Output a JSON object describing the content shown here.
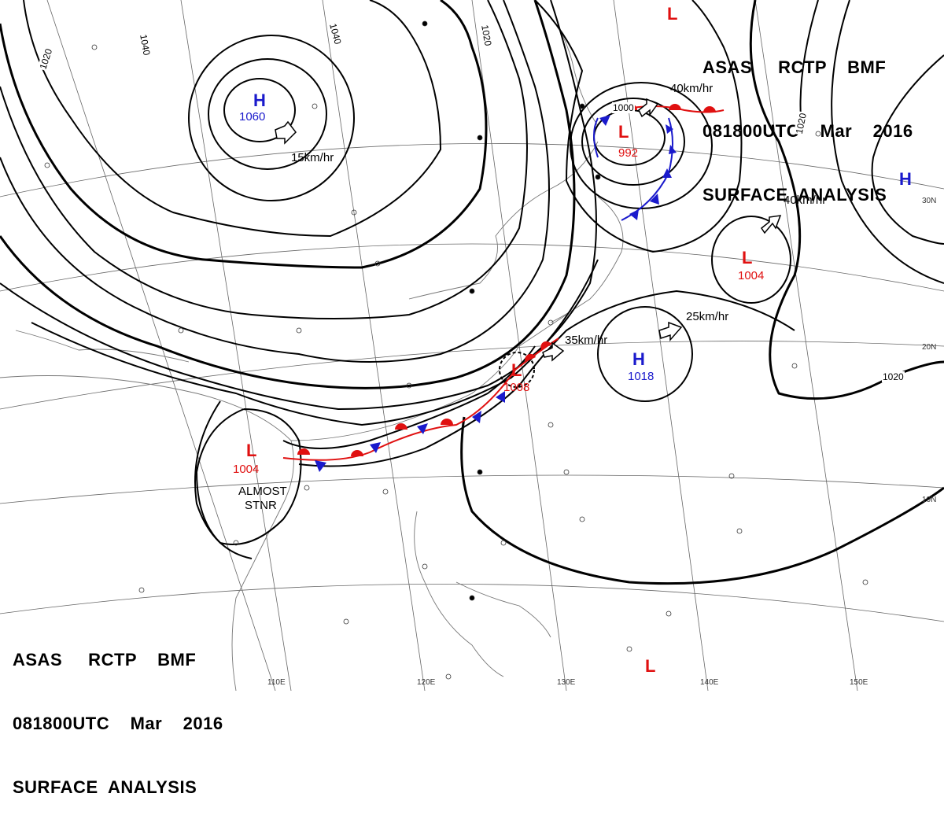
{
  "header": {
    "line1": "ASAS     RCTP    BMF",
    "line2": "081800UTC    Mar    2016",
    "line3": "SURFACE  ANALYSIS"
  },
  "systems": [
    {
      "id": "h1",
      "type": "H",
      "pressure": "1060",
      "speed": "15km/hr"
    },
    {
      "id": "l1",
      "type": "L",
      "pressure": "992",
      "speed": "40km/hr"
    },
    {
      "id": "l2",
      "type": "L",
      "pressure": "1004",
      "speed": "40km/hr"
    },
    {
      "id": "h2",
      "type": "H",
      "pressure": "",
      "speed": ""
    },
    {
      "id": "h3",
      "type": "H",
      "pressure": "1018",
      "speed": "25km/hr"
    },
    {
      "id": "l3",
      "type": "L",
      "pressure": "1008",
      "speed": "35km/hr"
    },
    {
      "id": "l4",
      "type": "L",
      "pressure": "1004",
      "speed": ""
    },
    {
      "id": "l5",
      "type": "L",
      "pressure": "",
      "speed": ""
    },
    {
      "id": "l6",
      "type": "L",
      "pressure": "",
      "speed": ""
    }
  ],
  "isobar_labels": [
    "1020",
    "1040",
    "1040",
    "1020",
    "1000",
    "1020",
    "1020"
  ],
  "annotation": {
    "line1": "ALMOST",
    "line2": "STNR"
  },
  "latitude_labels": [
    "30N",
    "20N",
    "10N"
  ],
  "longitude_labels": [
    "110E",
    "120E",
    "130E",
    "140E",
    "150E"
  ],
  "colors": {
    "high": "#1a1acc",
    "low": "#e01010",
    "warm_front": "#e01010",
    "cold_front": "#1a1acc",
    "isobar": "#000000"
  }
}
